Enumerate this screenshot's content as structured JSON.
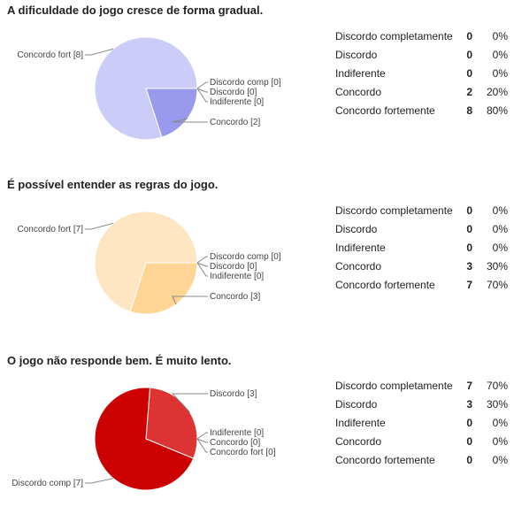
{
  "chart_data": [
    {
      "type": "pie",
      "title": "A dificuldade do jogo cresce de forma gradual.",
      "palette": {
        "main": "#ccccf8",
        "secondary": "#9999ee",
        "stroke": "#ffffff"
      },
      "slices": [
        {
          "name": "Discordo completamente",
          "label": "Discordo comp [0]",
          "count": 0,
          "percent": "0%"
        },
        {
          "name": "Discordo",
          "label": "Discordo [0]",
          "count": 0,
          "percent": "0%"
        },
        {
          "name": "Indiferente",
          "label": "Indiferente [0]",
          "count": 0,
          "percent": "0%"
        },
        {
          "name": "Concordo",
          "label": "Concordo [2]",
          "count": 2,
          "percent": "20%"
        },
        {
          "name": "Concordo fortemente",
          "label": "Concordo fort [8]",
          "count": 8,
          "percent": "80%"
        }
      ]
    },
    {
      "type": "pie",
      "title": "É possível entender as regras do jogo.",
      "palette": {
        "main": "#ffe6c2",
        "secondary": "#ffd595",
        "stroke": "#ffffff"
      },
      "slices": [
        {
          "name": "Discordo completamente",
          "label": "Discordo comp [0]",
          "count": 0,
          "percent": "0%"
        },
        {
          "name": "Discordo",
          "label": "Discordo [0]",
          "count": 0,
          "percent": "0%"
        },
        {
          "name": "Indiferente",
          "label": "Indiferente [0]",
          "count": 0,
          "percent": "0%"
        },
        {
          "name": "Concordo",
          "label": "Concordo [3]",
          "count": 3,
          "percent": "30%"
        },
        {
          "name": "Concordo fortemente",
          "label": "Concordo fort [7]",
          "count": 7,
          "percent": "70%"
        }
      ]
    },
    {
      "type": "pie",
      "title": "O jogo não responde bem. É muito lento.",
      "palette": {
        "main": "#cc0000",
        "secondary": "#dd3333",
        "stroke": "#ffffff"
      },
      "slices": [
        {
          "name": "Discordo completamente",
          "label": "Discordo comp [7]",
          "count": 7,
          "percent": "70%"
        },
        {
          "name": "Discordo",
          "label": "Discordo [3]",
          "count": 3,
          "percent": "30%"
        },
        {
          "name": "Indiferente",
          "label": "Indiferente [0]",
          "count": 0,
          "percent": "0%"
        },
        {
          "name": "Concordo",
          "label": "Concordo [0]",
          "count": 0,
          "percent": "0%"
        },
        {
          "name": "Concordo fortemente",
          "label": "Concordo fort [0]",
          "count": 0,
          "percent": "0%"
        }
      ]
    }
  ]
}
